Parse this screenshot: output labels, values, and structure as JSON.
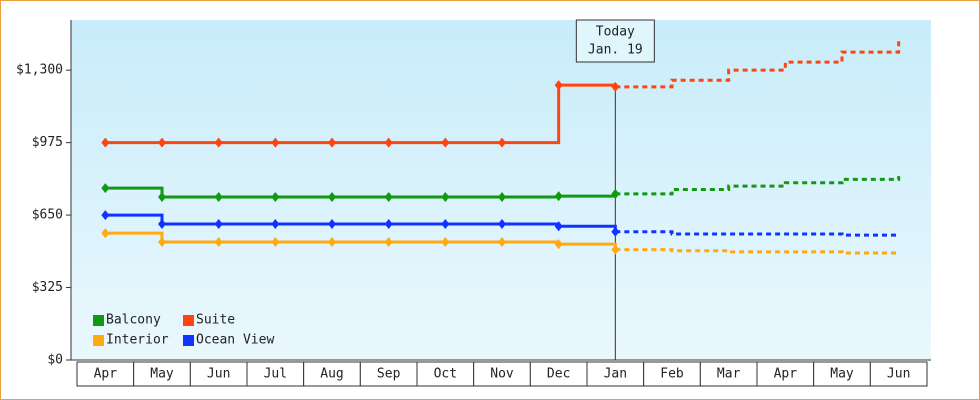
{
  "chart_data": {
    "type": "line",
    "categories": [
      "Apr",
      "May",
      "Jun",
      "Jul",
      "Aug",
      "Sep",
      "Oct",
      "Nov",
      "Dec",
      "Jan",
      "Feb",
      "Mar",
      "Apr",
      "May",
      "Jun"
    ],
    "series": [
      {
        "name": "Balcony",
        "color": "#119911",
        "values": [
          771,
          731,
          731,
          731,
          731,
          731,
          731,
          731,
          735,
          745,
          765,
          780,
          795,
          810,
          825
        ]
      },
      {
        "name": "Suite",
        "color": "#ff4411",
        "values": [
          975,
          975,
          975,
          975,
          975,
          975,
          975,
          975,
          1233,
          1225,
          1255,
          1300,
          1336,
          1381,
          1435
        ]
      },
      {
        "name": "Interior",
        "color": "#ffaa11",
        "values": [
          569,
          529,
          529,
          529,
          529,
          529,
          529,
          529,
          520,
          495,
          490,
          485,
          485,
          480,
          475
        ]
      },
      {
        "name": "Ocean View",
        "color": "#1133ff",
        "values": [
          650,
          610,
          610,
          610,
          610,
          610,
          610,
          610,
          600,
          575,
          565,
          565,
          565,
          560,
          560
        ]
      }
    ],
    "ylim": [
      0,
      1525
    ],
    "yticks": [
      {
        "value": 0,
        "label": "$0"
      },
      {
        "value": 325,
        "label": "$325"
      },
      {
        "value": 650,
        "label": "$650"
      },
      {
        "value": 975,
        "label": "$975"
      },
      {
        "value": 1300,
        "label": "$1,300"
      }
    ],
    "annotation": {
      "lines": [
        "Today",
        "Jan. 19"
      ],
      "category": "Jan"
    },
    "legend": "lower left"
  }
}
